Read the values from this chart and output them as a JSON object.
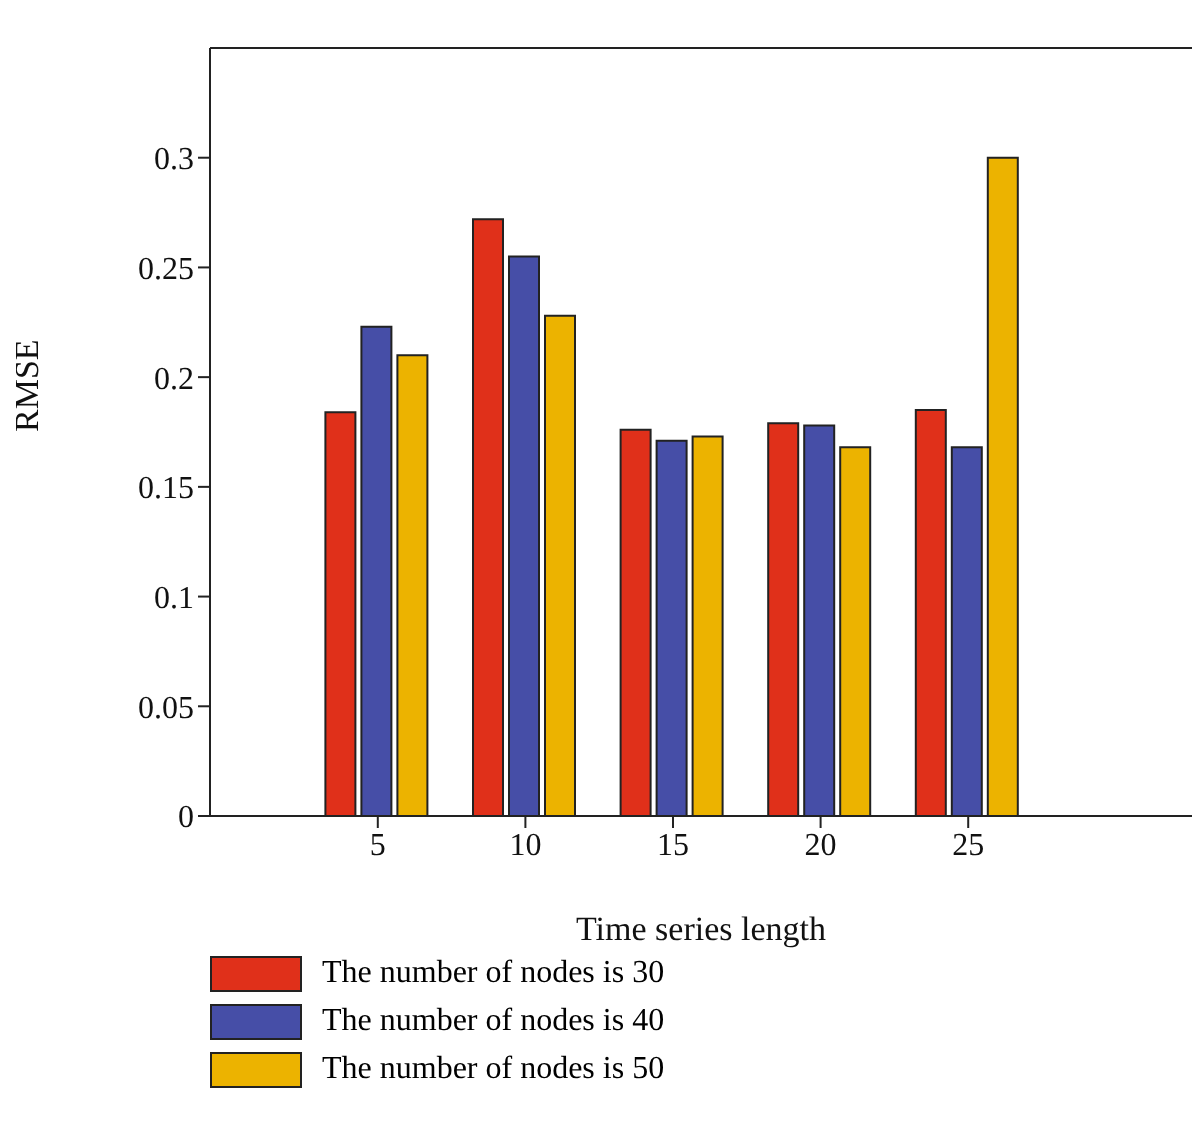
{
  "chart_data": {
    "type": "bar",
    "xlabel": "Time series length",
    "ylabel": "RMSE",
    "categories": [
      "5",
      "10",
      "15",
      "20",
      "25"
    ],
    "series": [
      {
        "name": "The number of nodes is 30",
        "color": "#e0301a",
        "values": [
          0.184,
          0.272,
          0.176,
          0.179,
          0.185
        ]
      },
      {
        "name": "The number of nodes is 40",
        "color": "#464ea7",
        "values": [
          0.223,
          0.255,
          0.171,
          0.178,
          0.168
        ]
      },
      {
        "name": "The number of nodes is 50",
        "color": "#ecb300",
        "values": [
          0.21,
          0.228,
          0.173,
          0.168,
          0.3
        ]
      }
    ],
    "ylim": [
      0,
      0.35
    ],
    "yticks": [
      0,
      0.05,
      0.1,
      0.15,
      0.2,
      0.25,
      0.3
    ],
    "grid": false,
    "legend": "bottom left"
  }
}
